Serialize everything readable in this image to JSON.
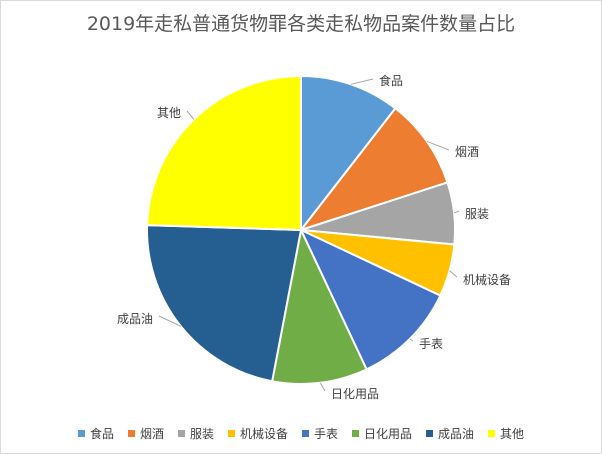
{
  "chart_data": {
    "type": "pie",
    "title": "2019年走私普通货物罪各类走私物品案件数量占比",
    "categories": [
      "食品",
      "烟酒",
      "服装",
      "机械设备",
      "手表",
      "日化用品",
      "成品油",
      "其他"
    ],
    "values": [
      10.5,
      9.5,
      6.5,
      5.5,
      11.0,
      10.0,
      22.5,
      24.5
    ],
    "colors": [
      "#5b9bd5",
      "#ed7d31",
      "#a5a5a5",
      "#ffc000",
      "#4472c4",
      "#70ad47",
      "#255e91",
      "#ffff00"
    ],
    "legend_position": "bottom"
  }
}
